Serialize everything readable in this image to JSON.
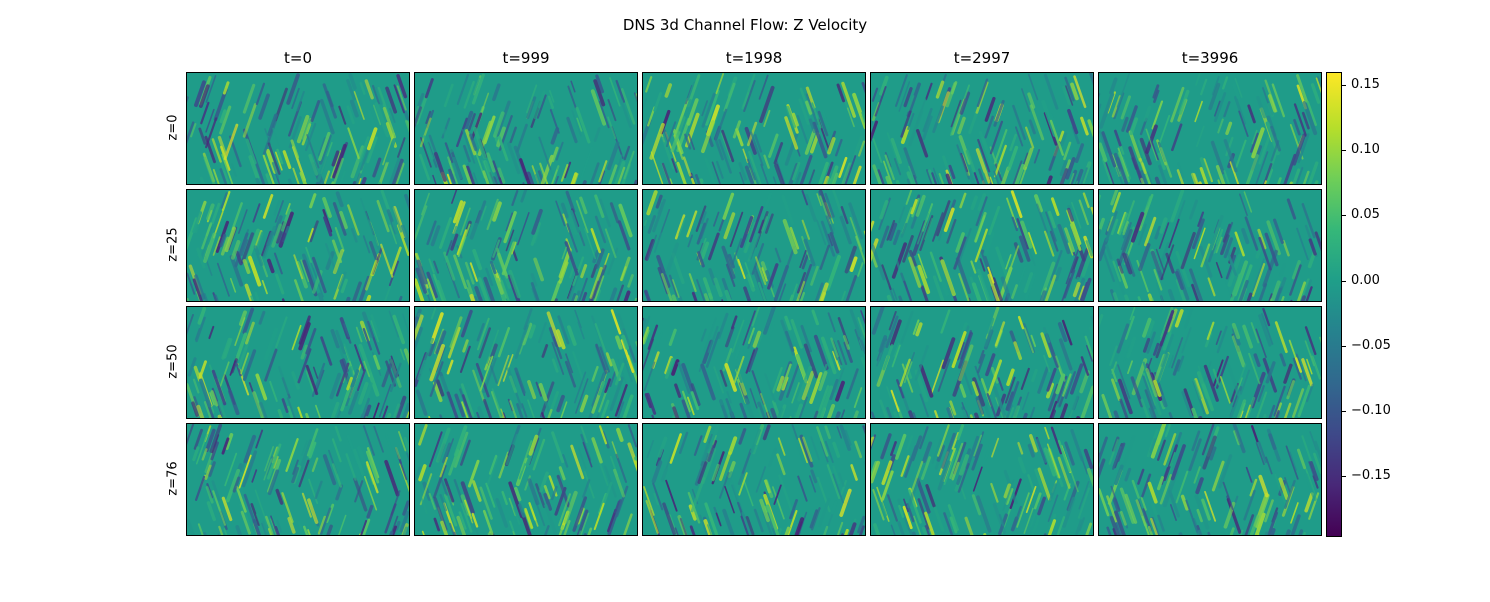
{
  "chart_data": {
    "type": "heatmap",
    "title": "DNS 3d Channel Flow: Z Velocity",
    "columns": [
      "t=0",
      "t=999",
      "t=1998",
      "t=2997",
      "t=3996"
    ],
    "rows": [
      "z=0",
      "z=25",
      "z=50",
      "z=76"
    ],
    "colormap": "viridis",
    "colorbar": {
      "min": -0.195,
      "max": 0.16,
      "ticks": [
        0.15,
        0.1,
        0.05,
        0.0,
        -0.05,
        -0.1,
        -0.15
      ],
      "tick_labels": [
        "0.15",
        "0.10",
        "0.05",
        "0.00",
        "−0.05",
        "−0.10",
        "−0.15"
      ]
    }
  }
}
